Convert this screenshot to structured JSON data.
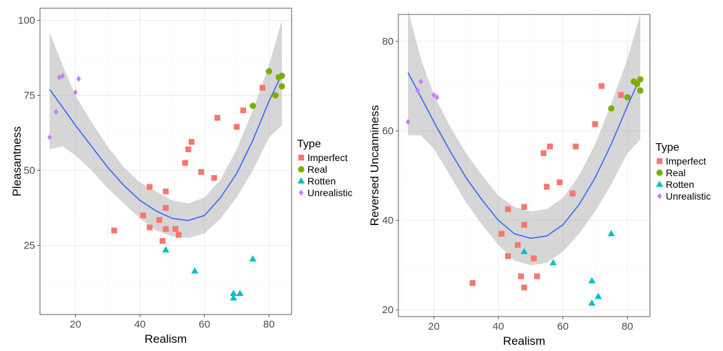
{
  "colors": {
    "Imperfect": "#f8766d",
    "Real": "#7cae00",
    "Rotten": "#00bfc4",
    "Unrealistic": "#c77cff"
  },
  "legend": {
    "title": "Type",
    "entries": [
      {
        "label": "Imperfect",
        "shape": "square"
      },
      {
        "label": "Real",
        "shape": "circle"
      },
      {
        "label": "Rotten",
        "shape": "triangle"
      },
      {
        "label": "Unrealistic",
        "shape": "diamond"
      }
    ]
  },
  "chart_data": [
    {
      "type": "scatter",
      "title": "",
      "xlabel": "Realism",
      "ylabel": "Pleasantness",
      "xlim": [
        9,
        87
      ],
      "ylim": [
        2,
        104
      ],
      "xticks": [
        20,
        40,
        60,
        80
      ],
      "yticks": [
        25,
        50,
        75,
        100
      ],
      "smooth": {
        "x": [
          12,
          16,
          20,
          25,
          30,
          35,
          40,
          45,
          50,
          55,
          60,
          65,
          70,
          75,
          80,
          84
        ],
        "y": [
          77,
          71,
          65,
          58,
          51,
          45,
          40,
          36.5,
          34,
          33.3,
          35,
          41,
          49,
          60,
          73,
          82
        ],
        "lower": [
          57,
          58,
          55,
          50,
          44,
          39,
          34,
          30,
          28,
          27.5,
          29,
          34,
          41,
          50,
          61,
          65
        ],
        "upper": [
          96,
          85,
          75,
          66,
          58,
          51,
          46,
          43,
          40,
          39,
          41,
          47,
          57,
          70,
          85,
          100
        ]
      },
      "series": [
        {
          "name": "Imperfect",
          "points": [
            [
              32,
              30
            ],
            [
              41,
              35
            ],
            [
              43,
              44.5
            ],
            [
              43,
              31
            ],
            [
              46,
              33.5
            ],
            [
              47,
              26.5
            ],
            [
              48,
              43
            ],
            [
              48,
              37.5
            ],
            [
              48,
              30.5
            ],
            [
              51,
              30.5
            ],
            [
              52,
              28.5
            ],
            [
              54,
              52.5
            ],
            [
              55,
              57
            ],
            [
              56,
              59.5
            ],
            [
              59,
              49.5
            ],
            [
              63,
              47.5
            ],
            [
              64,
              67.5
            ],
            [
              70,
              64.5
            ],
            [
              72,
              70
            ],
            [
              78,
              77.5
            ]
          ]
        },
        {
          "name": "Real",
          "points": [
            [
              75,
              71.5
            ],
            [
              80,
              83
            ],
            [
              82,
              75
            ],
            [
              83,
              81
            ],
            [
              84,
              81.5
            ],
            [
              84,
              78
            ]
          ]
        },
        {
          "name": "Rotten",
          "points": [
            [
              48,
              23.5
            ],
            [
              57,
              16.5
            ],
            [
              69,
              9
            ],
            [
              69,
              7.5
            ],
            [
              71,
              9
            ],
            [
              75,
              20.5
            ]
          ]
        },
        {
          "name": "Unrealistic",
          "points": [
            [
              12,
              61
            ],
            [
              14,
              69.5
            ],
            [
              15,
              81
            ],
            [
              16,
              81.5
            ],
            [
              20,
              76
            ],
            [
              21,
              80.5
            ]
          ]
        }
      ]
    },
    {
      "type": "scatter",
      "title": "",
      "xlabel": "Realism",
      "ylabel": "Reversed Uncanniness",
      "xlim": [
        9,
        87
      ],
      "ylim": [
        18.5,
        86
      ],
      "xticks": [
        20,
        40,
        60,
        80
      ],
      "yticks": [
        20,
        40,
        60,
        80
      ],
      "smooth": {
        "x": [
          12,
          16,
          20,
          25,
          30,
          35,
          40,
          45,
          50,
          55,
          60,
          65,
          70,
          75,
          80,
          84
        ],
        "y": [
          73,
          67.5,
          62,
          55.5,
          49.5,
          44.5,
          40,
          37,
          36,
          36.5,
          39,
          43.5,
          49.5,
          57,
          65.5,
          72
        ],
        "lower": [
          59,
          59,
          56,
          50,
          44,
          39,
          34.5,
          31,
          30,
          30.5,
          33,
          37,
          42,
          48,
          55,
          58
        ],
        "upper": [
          87,
          76,
          68,
          61,
          55,
          50,
          45.5,
          43,
          42,
          42.5,
          45,
          50,
          57,
          66,
          76,
          86
        ]
      },
      "series": [
        {
          "name": "Imperfect",
          "points": [
            [
              32,
              26
            ],
            [
              41,
              37
            ],
            [
              43,
              32
            ],
            [
              43,
              42.5
            ],
            [
              46,
              34.5
            ],
            [
              47,
              27.5
            ],
            [
              48,
              43
            ],
            [
              48,
              39
            ],
            [
              48,
              25
            ],
            [
              51,
              31.5
            ],
            [
              52,
              27.5
            ],
            [
              54,
              55
            ],
            [
              55,
              47.5
            ],
            [
              56,
              56.5
            ],
            [
              59,
              48.5
            ],
            [
              63,
              46
            ],
            [
              64,
              56.5
            ],
            [
              70,
              61.5
            ],
            [
              72,
              70
            ],
            [
              78,
              68
            ]
          ]
        },
        {
          "name": "Real",
          "points": [
            [
              75,
              65
            ],
            [
              80,
              67.5
            ],
            [
              82,
              71
            ],
            [
              83,
              70.5
            ],
            [
              84,
              71.5
            ],
            [
              84,
              69
            ]
          ]
        },
        {
          "name": "Rotten",
          "points": [
            [
              48,
              33
            ],
            [
              57,
              30.5
            ],
            [
              69,
              26.5
            ],
            [
              69,
              21.5
            ],
            [
              71,
              23
            ],
            [
              75,
              37
            ]
          ]
        },
        {
          "name": "Unrealistic",
          "points": [
            [
              12,
              62
            ],
            [
              15,
              69
            ],
            [
              16,
              71
            ],
            [
              20,
              68
            ],
            [
              21,
              67.5
            ]
          ]
        }
      ]
    }
  ]
}
